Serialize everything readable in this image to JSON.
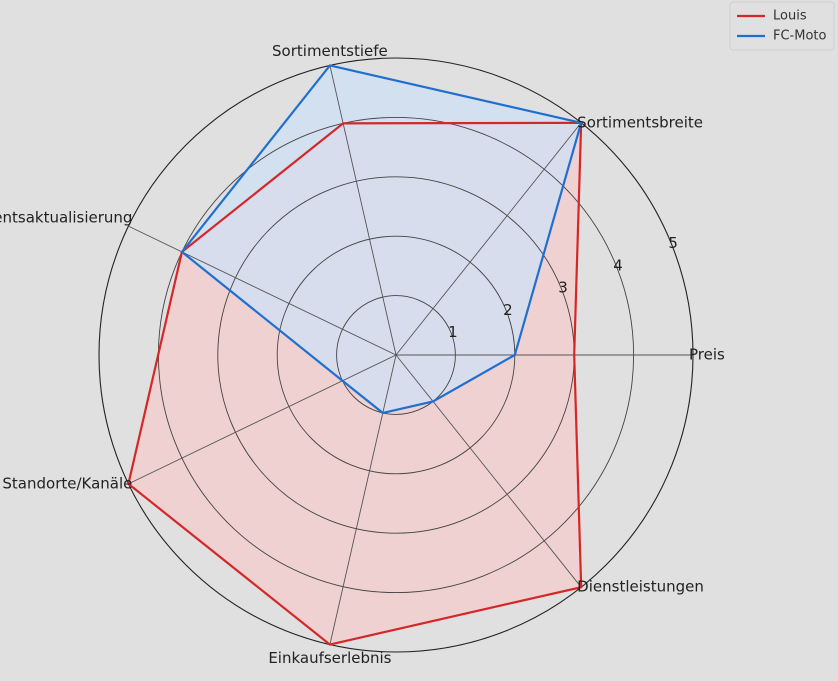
{
  "chart_data": {
    "type": "radar",
    "categories": [
      "Preis",
      "Sortimentsbreite",
      "Sortimentstiefe",
      "Sortimentsaktualisierung",
      "Standorte/Kanäle",
      "Einkaufserlebnis",
      "Dienstleistungen"
    ],
    "radial_ticks": [
      "1",
      "2",
      "3",
      "4",
      "5"
    ],
    "rlim": [
      0,
      5
    ],
    "grid": true,
    "legend_position": "top-right",
    "series": [
      {
        "name": "Louis",
        "color": "#d62728",
        "fill": "#f4cccc",
        "values": [
          3,
          5,
          4,
          4,
          5,
          5,
          5
        ]
      },
      {
        "name": "FC-Moto",
        "color": "#1f6fd1",
        "fill": "#cfe0f5",
        "values": [
          2,
          5,
          5,
          4,
          1,
          1,
          1
        ]
      }
    ]
  }
}
